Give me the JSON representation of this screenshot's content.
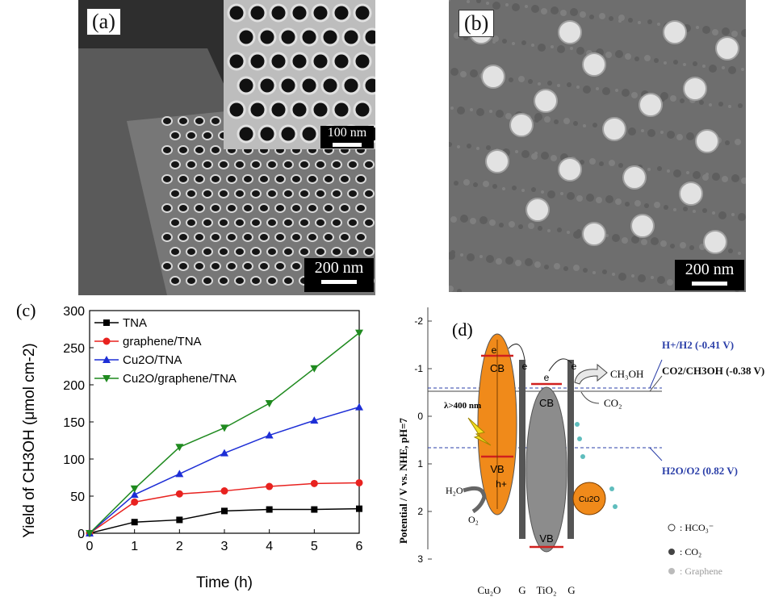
{
  "panel_a": {
    "label": "(a)",
    "inset_scale": "100 nm",
    "main_scale": "200 nm"
  },
  "panel_b": {
    "label": "(b)",
    "scale": "200 nm"
  },
  "panel_c": {
    "label": "(c)",
    "chart_data": {
      "type": "line",
      "title": "",
      "xlabel": "Time (h)",
      "ylabel": "Yield of CH3OH (μmol cm-2)",
      "x": [
        0,
        1,
        2,
        3,
        4,
        5,
        6
      ],
      "xlim": [
        0,
        6
      ],
      "ylim": [
        0,
        300
      ],
      "xticks": [
        "0",
        "1",
        "2",
        "3",
        "4",
        "5",
        "6"
      ],
      "yticks": [
        "0",
        "50",
        "100",
        "150",
        "200",
        "250",
        "300"
      ],
      "legend_position": "top-left",
      "series": [
        {
          "name": "TNA",
          "color": "#000000",
          "marker": "square",
          "values": [
            0,
            15,
            18,
            30,
            32,
            32,
            33
          ]
        },
        {
          "name": "graphene/TNA",
          "color": "#e8221f",
          "marker": "circle",
          "values": [
            0,
            42,
            53,
            57,
            63,
            67,
            68
          ]
        },
        {
          "name": "Cu2O/TNA",
          "color": "#1d2ed6",
          "marker": "triangle-up",
          "values": [
            0,
            52,
            80,
            108,
            132,
            152,
            170
          ]
        },
        {
          "name": "Cu2O/graphene/TNA",
          "color": "#1f8a1f",
          "marker": "triangle-down",
          "values": [
            0,
            60,
            116,
            142,
            175,
            222,
            270
          ]
        }
      ]
    }
  },
  "panel_d": {
    "label": "(d)",
    "yaxis_label": "Potential / V vs. NHE, pH=7",
    "yticks": [
      "-2",
      "-1",
      "0",
      "1",
      "2",
      "3"
    ],
    "levels": {
      "h2": "H+/H2 (-0.41 V)",
      "methanol": "CO2/CH3OH (-0.38 V)",
      "o2": "H2O/O2 (0.82 V)"
    },
    "band_labels": {
      "cu2o_cb": "CB",
      "cu2o_vb": "VB",
      "tio2_cb": "CB",
      "tio2_vb": "VB",
      "electron": "e",
      "hole": "h+",
      "light": "λ>400 nm"
    },
    "species": {
      "ch3oh": "CH₃OH",
      "co2": "CO₂",
      "h2o": "H₂O",
      "o2": "O₂",
      "cu2o_particle": "Cu2O"
    },
    "legend": {
      "hco3": ": HCO₃⁻",
      "co2": ": CO₂",
      "graphene": ": Graphene"
    },
    "bottom_labels": {
      "cu2o": "Cu₂O",
      "g1": "G",
      "tio2": "TiO₂",
      "g2": "G"
    }
  }
}
